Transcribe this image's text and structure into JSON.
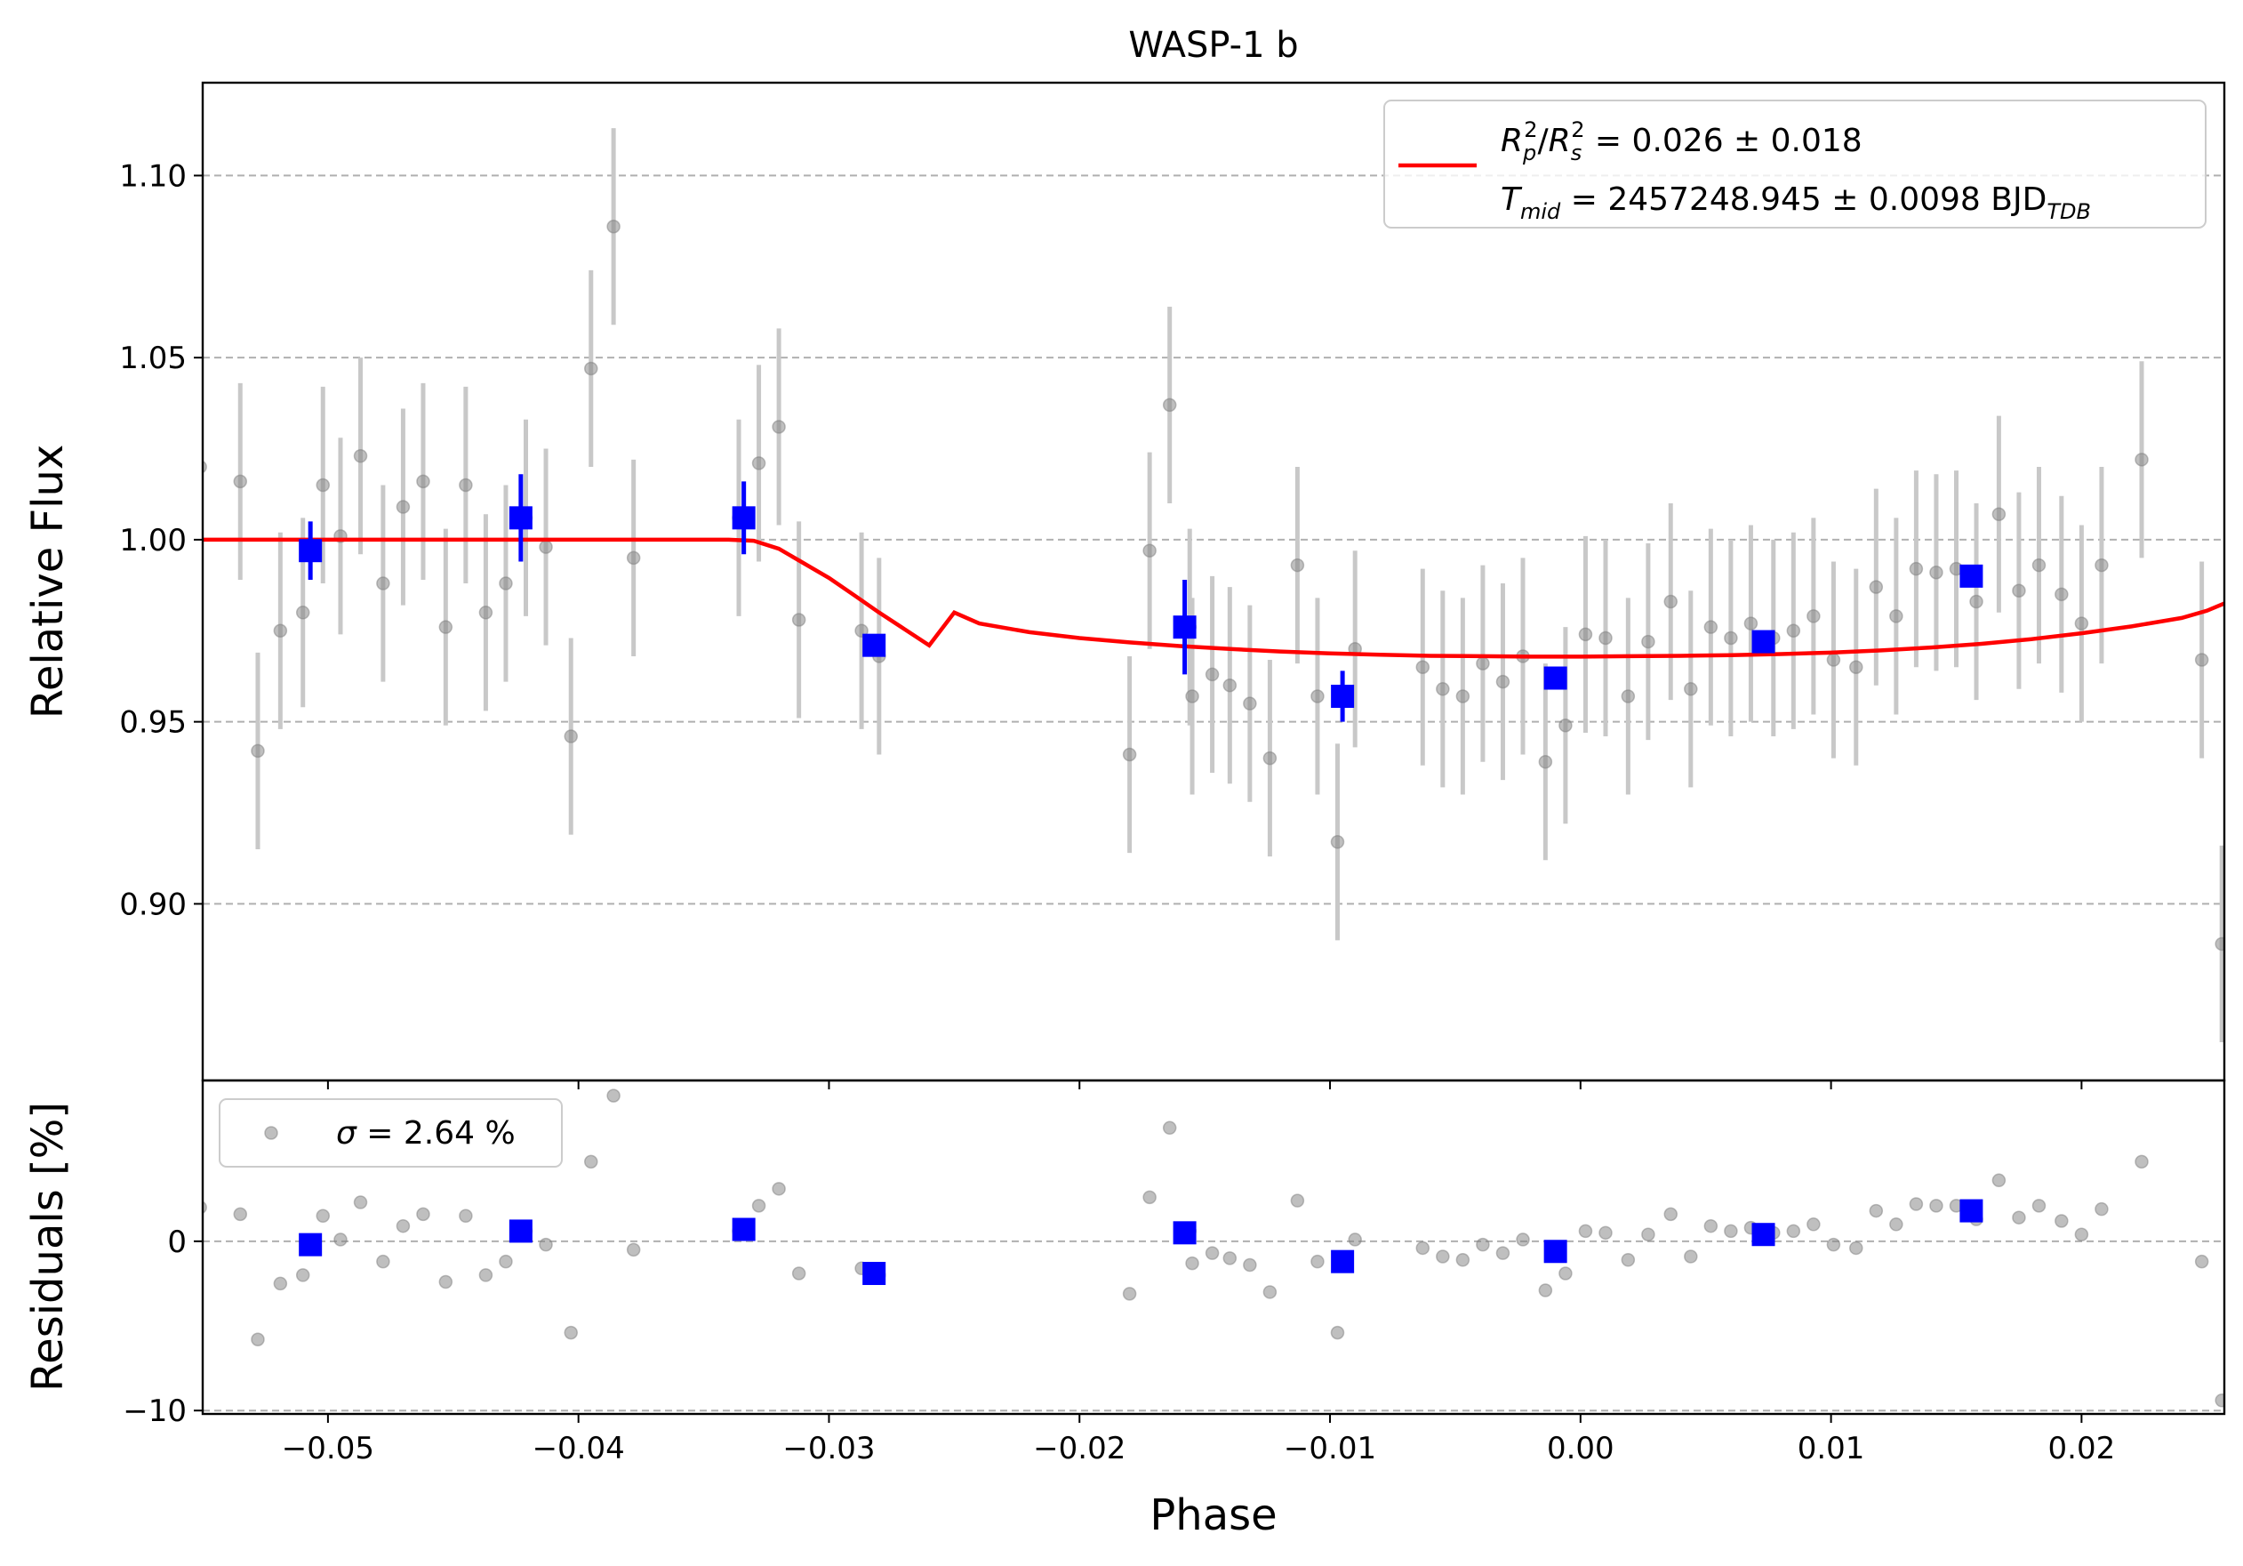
{
  "chart_data": [
    {
      "type": "scatter",
      "panel": "main",
      "title": "WASP-1 b",
      "xlabel": "",
      "ylabel": "Relative Flux",
      "xlim": [
        -0.055,
        0.0257
      ],
      "ylim": [
        0.8515,
        1.1255
      ],
      "xticks": [
        -0.05,
        -0.04,
        -0.03,
        -0.02,
        -0.01,
        0.0,
        0.01,
        0.02
      ],
      "yticks": [
        0.9,
        0.95,
        1.0,
        1.05,
        1.1
      ],
      "ytick_labels": [
        "0.90",
        "0.95",
        "1.00",
        "1.05",
        "1.10"
      ],
      "grid": "horizontal dashed",
      "legend": {
        "placement": "top-right",
        "line1": "R_p^2/R_s^2 = 0.026 ± 0.018",
        "line2": "T_mid = 2457248.945 ± 0.0098 BJD_TDB",
        "line1_math": {
          "a": "R",
          "a_sub": "p",
          "a_sup": "2",
          "b": "R",
          "b_sub": "s",
          "b_sup": "2",
          "rest": " = 0.026 ± 0.018"
        },
        "line2_math": {
          "a": "T",
          "a_sub": "mid",
          "rest": " = 2457248.945 ± 0.0098 BJD",
          "tail_sub": "TDB"
        }
      },
      "raw": {
        "color": "#808080",
        "errcolor": "#c8c8c8",
        "points": [
          [
            -0.0551,
            1.02,
            0.025
          ],
          [
            -0.0535,
            1.016,
            0.027
          ],
          [
            -0.0528,
            0.942,
            0.027
          ],
          [
            -0.0519,
            0.975,
            0.027
          ],
          [
            -0.051,
            0.98,
            0.026
          ],
          [
            -0.0502,
            1.015,
            0.027
          ],
          [
            -0.0495,
            1.001,
            0.027
          ],
          [
            -0.0487,
            1.023,
            0.027
          ],
          [
            -0.0478,
            0.988,
            0.027
          ],
          [
            -0.047,
            1.009,
            0.027
          ],
          [
            -0.0462,
            1.016,
            0.027
          ],
          [
            -0.0453,
            0.976,
            0.027
          ],
          [
            -0.0445,
            1.015,
            0.027
          ],
          [
            -0.0437,
            0.98,
            0.027
          ],
          [
            -0.0429,
            0.988,
            0.027
          ],
          [
            -0.0421,
            1.006,
            0.027
          ],
          [
            -0.0413,
            0.998,
            0.027
          ],
          [
            -0.0403,
            0.946,
            0.027
          ],
          [
            -0.0395,
            1.047,
            0.027
          ],
          [
            -0.0386,
            1.086,
            0.027
          ],
          [
            -0.0378,
            0.995,
            0.027
          ],
          [
            -0.0336,
            1.006,
            0.027
          ],
          [
            -0.0328,
            1.021,
            0.027
          ],
          [
            -0.032,
            1.031,
            0.027
          ],
          [
            -0.0312,
            0.978,
            0.027
          ],
          [
            -0.0287,
            0.975,
            0.027
          ],
          [
            -0.028,
            0.968,
            0.027
          ],
          [
            -0.018,
            0.941,
            0.027
          ],
          [
            -0.0172,
            0.997,
            0.027
          ],
          [
            -0.0164,
            1.037,
            0.027
          ],
          [
            -0.0156,
            0.976,
            0.027
          ],
          [
            -0.0155,
            0.957,
            0.027
          ],
          [
            -0.0147,
            0.963,
            0.027
          ],
          [
            -0.014,
            0.96,
            0.027
          ],
          [
            -0.0132,
            0.955,
            0.027
          ],
          [
            -0.0124,
            0.94,
            0.027
          ],
          [
            -0.0113,
            0.993,
            0.027
          ],
          [
            -0.0105,
            0.957,
            0.027
          ],
          [
            -0.0097,
            0.917,
            0.027
          ],
          [
            -0.009,
            0.97,
            0.027
          ],
          [
            -0.0063,
            0.965,
            0.027
          ],
          [
            -0.0055,
            0.959,
            0.027
          ],
          [
            -0.0047,
            0.957,
            0.027
          ],
          [
            -0.0039,
            0.966,
            0.027
          ],
          [
            -0.0031,
            0.961,
            0.027
          ],
          [
            -0.0023,
            0.968,
            0.027
          ],
          [
            -0.0014,
            0.939,
            0.027
          ],
          [
            -0.0006,
            0.949,
            0.027
          ],
          [
            0.0002,
            0.974,
            0.027
          ],
          [
            0.001,
            0.973,
            0.027
          ],
          [
            0.0019,
            0.957,
            0.027
          ],
          [
            0.0027,
            0.972,
            0.027
          ],
          [
            0.0036,
            0.983,
            0.027
          ],
          [
            0.0044,
            0.959,
            0.027
          ],
          [
            0.0052,
            0.976,
            0.027
          ],
          [
            0.006,
            0.973,
            0.027
          ],
          [
            0.0068,
            0.977,
            0.027
          ],
          [
            0.0077,
            0.973,
            0.027
          ],
          [
            0.0085,
            0.975,
            0.027
          ],
          [
            0.0093,
            0.979,
            0.027
          ],
          [
            0.0101,
            0.967,
            0.027
          ],
          [
            0.011,
            0.965,
            0.027
          ],
          [
            0.0118,
            0.987,
            0.027
          ],
          [
            0.0126,
            0.979,
            0.027
          ],
          [
            0.0134,
            0.992,
            0.027
          ],
          [
            0.0142,
            0.991,
            0.027
          ],
          [
            0.015,
            0.992,
            0.027
          ],
          [
            0.0158,
            0.983,
            0.027
          ],
          [
            0.0167,
            1.007,
            0.027
          ],
          [
            0.0175,
            0.986,
            0.027
          ],
          [
            0.0183,
            0.993,
            0.027
          ],
          [
            0.0192,
            0.985,
            0.027
          ],
          [
            0.02,
            0.977,
            0.027
          ],
          [
            0.0208,
            0.993,
            0.027
          ],
          [
            0.0224,
            1.022,
            0.027
          ],
          [
            0.0248,
            0.967,
            0.027
          ],
          [
            0.0256,
            0.889,
            0.027
          ]
        ]
      },
      "binned": {
        "color": "#0000ff",
        "points": [
          [
            -0.0507,
            0.997,
            0.008
          ],
          [
            -0.0423,
            1.006,
            0.012
          ],
          [
            -0.0334,
            1.006,
            0.01
          ],
          [
            -0.0282,
            0.971,
            0.003
          ],
          [
            -0.0158,
            0.976,
            0.013
          ],
          [
            -0.0095,
            0.957,
            0.007
          ],
          [
            -0.001,
            0.962,
            0.003
          ],
          [
            0.0073,
            0.972,
            0.003
          ],
          [
            0.0156,
            0.99,
            0.003
          ]
        ]
      },
      "model": {
        "color": "#ff0000",
        "points": [
          [
            -0.055,
            1.0
          ],
          [
            -0.034,
            1.0
          ],
          [
            -0.033,
            0.9997
          ],
          [
            -0.032,
            0.9975
          ],
          [
            -0.031,
            0.9935
          ],
          [
            -0.03,
            0.9895
          ],
          [
            -0.029,
            0.9848
          ],
          [
            -0.028,
            0.98
          ],
          [
            -0.027,
            0.9755
          ],
          [
            -0.026,
            0.971
          ],
          [
            -0.025,
            0.98
          ],
          [
            -0.024,
            0.977
          ],
          [
            -0.022,
            0.9746
          ],
          [
            -0.02,
            0.973
          ],
          [
            -0.018,
            0.9718
          ],
          [
            -0.016,
            0.9708
          ],
          [
            -0.014,
            0.97
          ],
          [
            -0.012,
            0.9693
          ],
          [
            -0.01,
            0.9688
          ],
          [
            -0.008,
            0.9684
          ],
          [
            -0.006,
            0.9681
          ],
          [
            -0.004,
            0.968
          ],
          [
            -0.002,
            0.9679
          ],
          [
            0.0,
            0.9679
          ],
          [
            0.002,
            0.968
          ],
          [
            0.004,
            0.9681
          ],
          [
            0.006,
            0.9683
          ],
          [
            0.008,
            0.9686
          ],
          [
            0.01,
            0.969
          ],
          [
            0.012,
            0.9696
          ],
          [
            0.014,
            0.9704
          ],
          [
            0.016,
            0.9714
          ],
          [
            0.018,
            0.9727
          ],
          [
            0.02,
            0.9743
          ],
          [
            0.022,
            0.9762
          ],
          [
            0.024,
            0.9785
          ],
          [
            0.025,
            0.9805
          ],
          [
            0.0257,
            0.9825
          ]
        ]
      }
    },
    {
      "type": "scatter",
      "panel": "residuals",
      "xlabel": "Phase",
      "ylabel": "Residuals [%]",
      "xlim": [
        -0.055,
        0.0257
      ],
      "ylim": [
        -10.2,
        9.5
      ],
      "xticks": [
        -0.05,
        -0.04,
        -0.03,
        -0.02,
        -0.01,
        0.0,
        0.01,
        0.02
      ],
      "xtick_labels": [
        "−0.05",
        "−0.04",
        "−0.03",
        "−0.02",
        "−0.01",
        "0.00",
        "0.01",
        "0.02"
      ],
      "yticks": [
        0,
        -10
      ],
      "ytick_labels": [
        "0",
        "−10"
      ],
      "grid": "horizontal dashed",
      "legend": {
        "placement": "top-left",
        "sigma_symbol": "σ",
        "label": " = 2.64 %"
      },
      "raw": {
        "color": "#808080",
        "points": [
          [
            -0.0551,
            2.0
          ],
          [
            -0.0535,
            1.6
          ],
          [
            -0.0528,
            -5.8
          ],
          [
            -0.0519,
            -2.5
          ],
          [
            -0.051,
            -2.0
          ],
          [
            -0.0502,
            1.5
          ],
          [
            -0.0495,
            0.1
          ],
          [
            -0.0487,
            2.3
          ],
          [
            -0.0478,
            -1.2
          ],
          [
            -0.047,
            0.9
          ],
          [
            -0.0462,
            1.6
          ],
          [
            -0.0453,
            -2.4
          ],
          [
            -0.0445,
            1.5
          ],
          [
            -0.0437,
            -2.0
          ],
          [
            -0.0429,
            -1.2
          ],
          [
            -0.0421,
            0.6
          ],
          [
            -0.0413,
            -0.2
          ],
          [
            -0.0403,
            -5.4
          ],
          [
            -0.0395,
            4.7
          ],
          [
            -0.0386,
            8.6
          ],
          [
            -0.0378,
            -0.5
          ],
          [
            -0.0336,
            0.6
          ],
          [
            -0.0328,
            2.1
          ],
          [
            -0.032,
            3.1
          ],
          [
            -0.0312,
            -1.9
          ],
          [
            -0.0287,
            -1.6
          ],
          [
            -0.028,
            -2.0
          ],
          [
            -0.018,
            -3.1
          ],
          [
            -0.0172,
            2.6
          ],
          [
            -0.0164,
            6.7
          ],
          [
            -0.0156,
            0.6
          ],
          [
            -0.0155,
            -1.3
          ],
          [
            -0.0147,
            -0.7
          ],
          [
            -0.014,
            -1.0
          ],
          [
            -0.0132,
            -1.4
          ],
          [
            -0.0124,
            -3.0
          ],
          [
            -0.0113,
            2.4
          ],
          [
            -0.0105,
            -1.2
          ],
          [
            -0.0097,
            -5.4
          ],
          [
            -0.009,
            0.1
          ],
          [
            -0.0063,
            -0.4
          ],
          [
            -0.0055,
            -0.9
          ],
          [
            -0.0047,
            -1.1
          ],
          [
            -0.0039,
            -0.2
          ],
          [
            -0.0031,
            -0.7
          ],
          [
            -0.0023,
            0.1
          ],
          [
            -0.0014,
            -2.9
          ],
          [
            -0.0006,
            -1.9
          ],
          [
            0.0002,
            0.6
          ],
          [
            0.001,
            0.5
          ],
          [
            0.0019,
            -1.1
          ],
          [
            0.0027,
            0.4
          ],
          [
            0.0036,
            1.6
          ],
          [
            0.0044,
            -0.9
          ],
          [
            0.0052,
            0.9
          ],
          [
            0.006,
            0.6
          ],
          [
            0.0068,
            0.8
          ],
          [
            0.0077,
            0.5
          ],
          [
            0.0085,
            0.6
          ],
          [
            0.0093,
            1.0
          ],
          [
            0.0101,
            -0.2
          ],
          [
            0.011,
            -0.4
          ],
          [
            0.0118,
            1.8
          ],
          [
            0.0126,
            1.0
          ],
          [
            0.0134,
            2.2
          ],
          [
            0.0142,
            2.1
          ],
          [
            0.015,
            2.1
          ],
          [
            0.0158,
            1.3
          ],
          [
            0.0167,
            3.6
          ],
          [
            0.0175,
            1.4
          ],
          [
            0.0183,
            2.1
          ],
          [
            0.0192,
            1.2
          ],
          [
            0.02,
            0.4
          ],
          [
            0.0208,
            1.9
          ],
          [
            0.0224,
            4.7
          ],
          [
            0.0248,
            -1.2
          ],
          [
            0.0256,
            -9.4
          ]
        ]
      },
      "binned": {
        "color": "#0000ff",
        "points": [
          [
            -0.0507,
            -0.2
          ],
          [
            -0.0423,
            0.6
          ],
          [
            -0.0334,
            0.7
          ],
          [
            -0.0282,
            -1.9
          ],
          [
            -0.0158,
            0.5
          ],
          [
            -0.0095,
            -1.2
          ],
          [
            -0.001,
            -0.6
          ],
          [
            0.0073,
            0.4
          ],
          [
            0.0156,
            1.8
          ]
        ]
      }
    }
  ]
}
